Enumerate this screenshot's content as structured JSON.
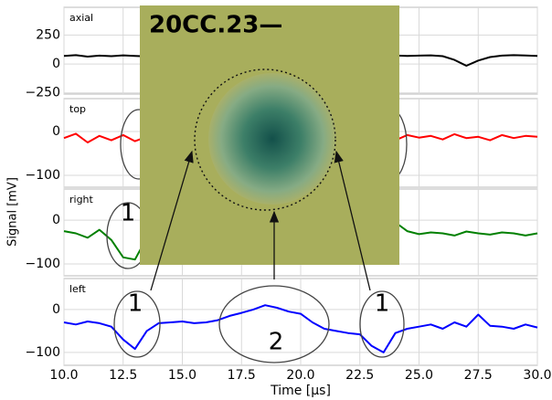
{
  "chart_data": [
    {
      "type": "line",
      "title": "axial",
      "color": "#000000",
      "x": [
        10,
        10.5,
        11,
        11.5,
        12,
        12.5,
        13,
        13.5,
        14,
        14.5,
        15,
        15.5,
        16,
        16.5,
        17,
        17.5,
        18,
        18.5,
        19,
        19.5,
        20,
        20.5,
        21,
        21.5,
        22,
        22.5,
        23,
        23.5,
        24,
        24.5,
        25,
        25.5,
        26,
        26.5,
        27,
        27.5,
        28,
        28.5,
        29,
        29.5,
        30
      ],
      "values": [
        70,
        76,
        64,
        72,
        68,
        75,
        70,
        66,
        73,
        69,
        74,
        70,
        67,
        72,
        70,
        75,
        68,
        71,
        74,
        69,
        72,
        70,
        76,
        68,
        73,
        71,
        75,
        69,
        74,
        70,
        72,
        75,
        68,
        35,
        -15,
        30,
        60,
        72,
        76,
        73,
        70
      ],
      "xlim": [
        10,
        30
      ],
      "ylim": [
        -260,
        490
      ],
      "xticks": [
        {
          "value": 10,
          "label": "10.0"
        },
        {
          "value": 12.5,
          "label": "12.5"
        },
        {
          "value": 15,
          "label": "15.0"
        },
        {
          "value": 17.5,
          "label": "17.5"
        },
        {
          "value": 20,
          "label": "20.0"
        },
        {
          "value": 22.5,
          "label": "22.5"
        },
        {
          "value": 25,
          "label": "25.0"
        },
        {
          "value": 27.5,
          "label": "27.5"
        },
        {
          "value": 30,
          "label": "30.0"
        }
      ],
      "yticks": [
        250,
        0,
        {
          "value": -250,
          "label": "−250"
        }
      ],
      "grid": true
    },
    {
      "type": "line",
      "title": "top",
      "color": "#ff0000",
      "x": [
        10,
        10.5,
        11,
        11.5,
        12,
        12.5,
        13,
        13.5,
        14,
        14.5,
        15,
        15.5,
        16,
        16.5,
        17,
        17.5,
        18,
        18.5,
        19,
        19.5,
        20,
        20.5,
        21,
        21.5,
        22,
        22.5,
        23,
        23.5,
        24,
        24.5,
        25,
        25.5,
        26,
        26.5,
        27,
        27.5,
        28,
        28.5,
        29,
        29.5,
        30
      ],
      "values": [
        -15,
        -5,
        -25,
        -10,
        -20,
        -8,
        -22,
        -12,
        -18,
        -5,
        -20,
        -14,
        -10,
        -22,
        -15,
        -8,
        -18,
        -12,
        -20,
        -10,
        -16,
        -12,
        -8,
        -18,
        -10,
        -15,
        -5,
        -12,
        -20,
        -8,
        -14,
        -10,
        -18,
        -6,
        -15,
        -12,
        -20,
        -8,
        -15,
        -10,
        -12
      ],
      "xlim": [
        10,
        30
      ],
      "ylim": [
        -127,
        75
      ],
      "xticks": [
        {
          "value": 10,
          "label": "10.0"
        },
        {
          "value": 12.5,
          "label": "12.5"
        },
        {
          "value": 15,
          "label": "15.0"
        },
        {
          "value": 17.5,
          "label": "17.5"
        },
        {
          "value": 20,
          "label": "20.0"
        },
        {
          "value": 22.5,
          "label": "22.5"
        },
        {
          "value": 25,
          "label": "25.0"
        },
        {
          "value": 27.5,
          "label": "27.5"
        },
        {
          "value": 30,
          "label": "30.0"
        }
      ],
      "yticks": [
        0,
        {
          "value": -100,
          "label": "−100"
        }
      ],
      "grid": true
    },
    {
      "type": "line",
      "title": "right",
      "color": "#008000",
      "ylabel": "Signal [mV]",
      "annotations": [
        "1"
      ],
      "x": [
        10,
        10.5,
        11,
        11.5,
        12,
        12.5,
        13,
        13.5,
        14,
        14.5,
        15,
        15.5,
        16,
        16.5,
        17,
        17.5,
        18,
        18.5,
        19,
        19.5,
        20,
        20.5,
        21,
        21.5,
        22,
        22.5,
        23,
        23.5,
        24,
        24.5,
        25,
        25.5,
        26,
        26.5,
        27,
        27.5,
        28,
        28.5,
        29,
        29.5,
        30
      ],
      "values": [
        -25,
        -30,
        -40,
        -22,
        -45,
        -85,
        -90,
        -40,
        -30,
        -28,
        -25,
        -30,
        -28,
        -32,
        -26,
        -30,
        -28,
        -25,
        -30,
        -27,
        -30,
        -28,
        -25,
        -32,
        -28,
        -30,
        -28,
        -35,
        -5,
        -25,
        -32,
        -28,
        -30,
        -35,
        -26,
        -30,
        -33,
        -28,
        -30,
        -35,
        -30
      ],
      "xlim": [
        10,
        30
      ],
      "ylim": [
        -127,
        71
      ],
      "xticks": [
        {
          "value": 10,
          "label": "10.0"
        },
        {
          "value": 12.5,
          "label": "12.5"
        },
        {
          "value": 15,
          "label": "15.0"
        },
        {
          "value": 17.5,
          "label": "17.5"
        },
        {
          "value": 20,
          "label": "20.0"
        },
        {
          "value": 22.5,
          "label": "22.5"
        },
        {
          "value": 25,
          "label": "25.0"
        },
        {
          "value": 27.5,
          "label": "27.5"
        },
        {
          "value": 30,
          "label": "30.0"
        }
      ],
      "yticks": [
        0,
        {
          "value": -100,
          "label": "−100"
        }
      ],
      "grid": true
    },
    {
      "type": "line",
      "title": "left",
      "color": "#0000ff",
      "xlabel": "Time [μs]",
      "annotations": [
        "1",
        "2",
        "1"
      ],
      "x": [
        10,
        10.5,
        11,
        11.5,
        12,
        12.5,
        13,
        13.5,
        14,
        14.5,
        15,
        15.5,
        16,
        16.5,
        17,
        17.5,
        18,
        18.5,
        19,
        19.5,
        20,
        20.5,
        21,
        21.5,
        22,
        22.5,
        23,
        23.5,
        24,
        24.5,
        25,
        25.5,
        26,
        26.5,
        27,
        27.5,
        28,
        28.5,
        29,
        29.5,
        30
      ],
      "values": [
        -30,
        -35,
        -28,
        -32,
        -40,
        -70,
        -92,
        -50,
        -32,
        -30,
        -28,
        -32,
        -30,
        -25,
        -15,
        -8,
        0,
        10,
        4,
        -5,
        -10,
        -30,
        -45,
        -50,
        -55,
        -58,
        -85,
        -100,
        -55,
        -45,
        -40,
        -35,
        -45,
        -30,
        -40,
        -12,
        -38,
        -40,
        -45,
        -35,
        -42
      ],
      "xlim": [
        10,
        30
      ],
      "ylim": [
        -130,
        72
      ],
      "xticks": [
        {
          "value": 10,
          "label": "10.0"
        },
        {
          "value": 12.5,
          "label": "12.5"
        },
        {
          "value": 15,
          "label": "15.0"
        },
        {
          "value": 17.5,
          "label": "17.5"
        },
        {
          "value": 20,
          "label": "20.0"
        },
        {
          "value": 22.5,
          "label": "22.5"
        },
        {
          "value": 25,
          "label": "25.0"
        },
        {
          "value": 27.5,
          "label": "27.5"
        },
        {
          "value": 30,
          "label": "30.0"
        }
      ],
      "yticks": [
        0,
        {
          "value": -100,
          "label": "−100"
        }
      ],
      "grid": true
    }
  ],
  "inset": {
    "text": "20CC.23—"
  }
}
